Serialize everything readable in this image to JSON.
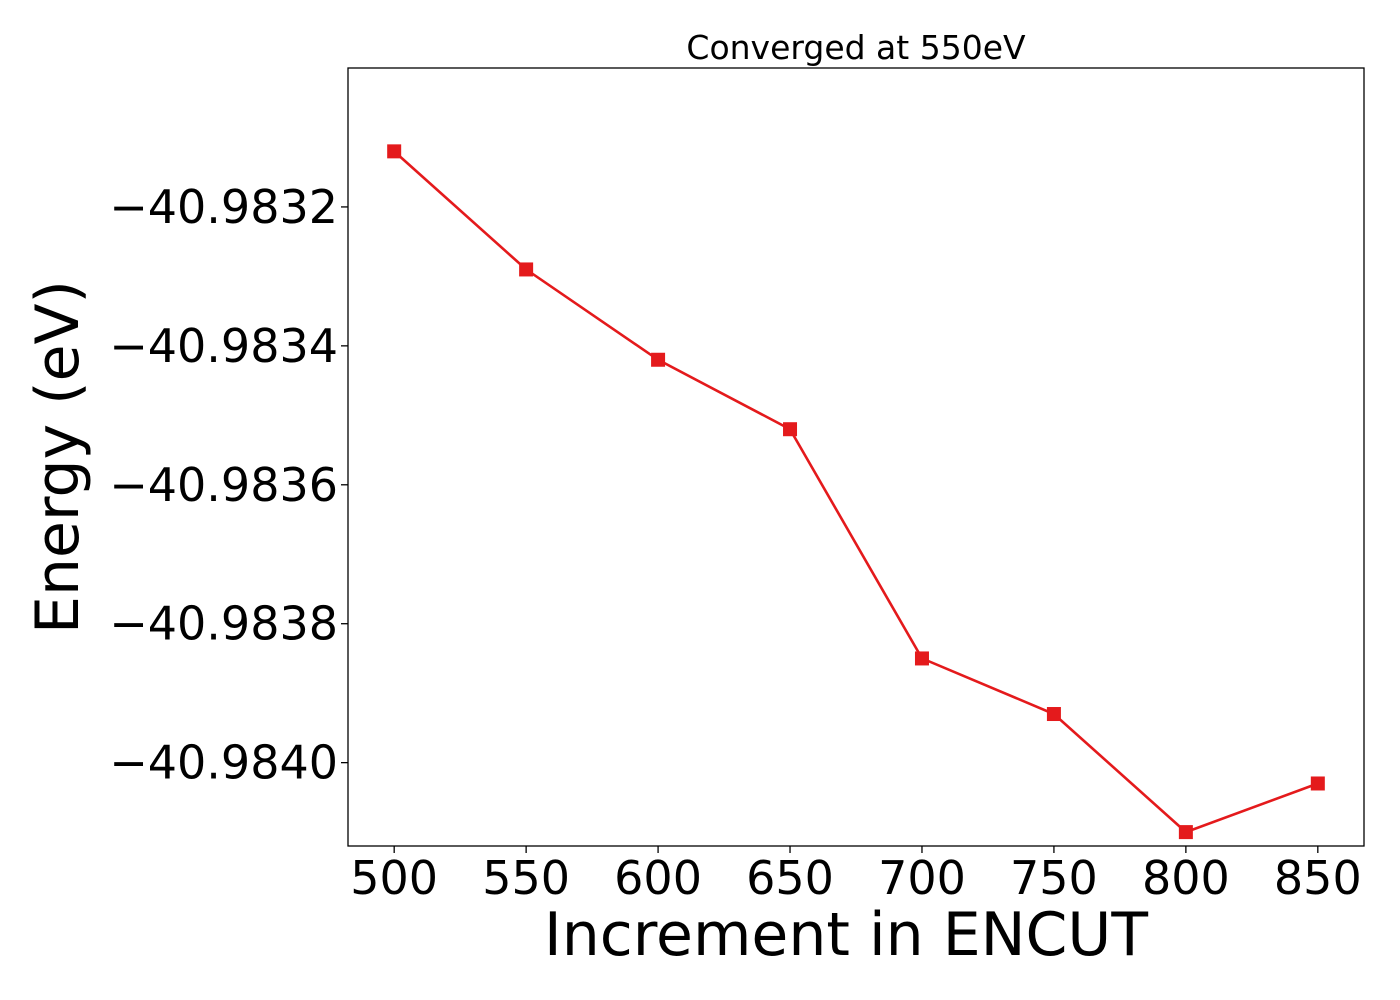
{
  "chart_data": {
    "type": "line",
    "title": "Converged at 550eV",
    "xlabel": "Increment in ENCUT",
    "ylabel": "Energy (eV)",
    "x": [
      500,
      550,
      600,
      650,
      700,
      750,
      800,
      850
    ],
    "series": [
      {
        "values": [
          -40.98312,
          -40.98329,
          -40.98342,
          -40.98352,
          -40.98385,
          -40.98393,
          -40.9841,
          -40.98403
        ],
        "color": "#e41a1c",
        "marker": "square"
      }
    ],
    "xlim": [
      482.5,
      867.5
    ],
    "ylim": [
      -40.98412,
      -40.983
    ],
    "xticks": [
      500,
      550,
      600,
      650,
      700,
      750,
      800,
      850
    ],
    "xtick_labels": [
      "500",
      "550",
      "600",
      "650",
      "700",
      "750",
      "800",
      "850"
    ],
    "yticks": [
      -40.9832,
      -40.9834,
      -40.9836,
      -40.9838,
      -40.984
    ],
    "ytick_labels": [
      "−40.9832",
      "−40.9834",
      "−40.9836",
      "−40.9838",
      "−40.9840"
    ],
    "grid": false,
    "legend": "none"
  }
}
